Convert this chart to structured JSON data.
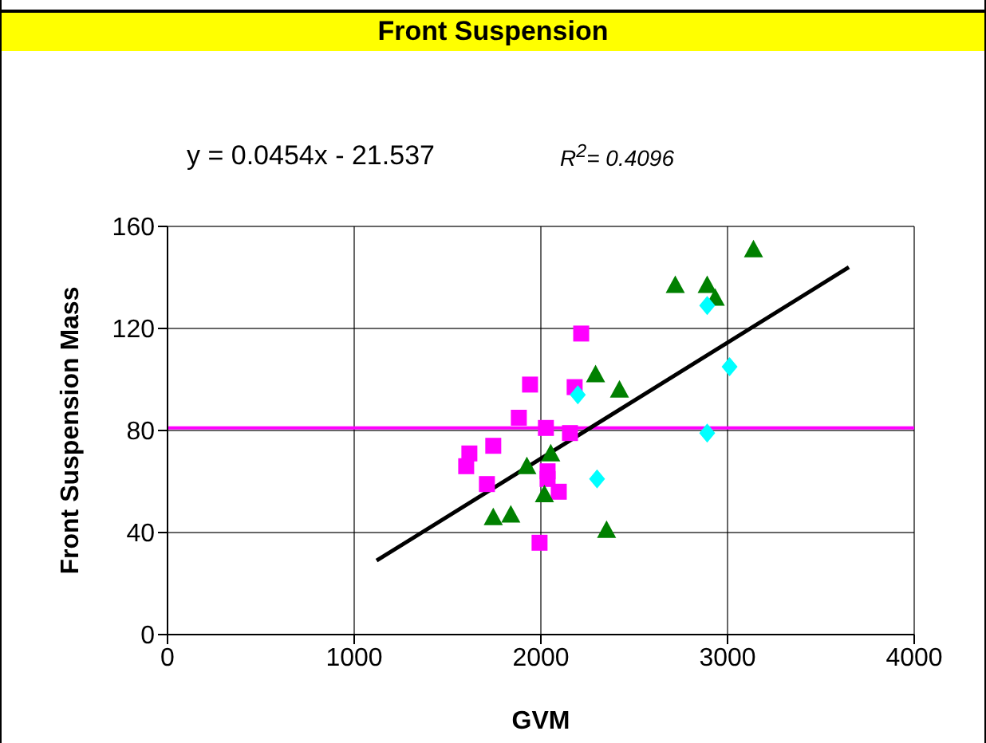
{
  "chart_data": {
    "type": "scatter",
    "title": "Front Suspension",
    "xlabel": "GVM",
    "ylabel": "Front Suspension Mass",
    "annotations": [
      "y = 0.0454x - 21.537",
      "R$^{2}$= 0.4096"
    ],
    "xlim": [
      0,
      4000
    ],
    "xticks": [
      0,
      1000,
      2000,
      3000,
      4000
    ],
    "ylim": [
      0,
      160
    ],
    "yticks": [
      0,
      40,
      80,
      120,
      160
    ],
    "grid": true,
    "ref_lines": [
      {
        "axis": "y",
        "value": 81,
        "color": "#ff00ff"
      }
    ],
    "series": [
      {
        "color": "#ff00ff",
        "marker": "square",
        "x": [
          1617,
          1600,
          1745,
          1711,
          2036,
          2036,
          2096,
          1993,
          2216,
          1942,
          2181,
          1882,
          2027,
          2156
        ],
        "values": [
          71,
          66,
          74,
          59,
          64,
          61,
          56,
          36,
          118,
          98,
          97,
          85,
          81,
          79
        ]
      },
      {
        "color": "#008000",
        "marker": "triangle",
        "x": [
          1745,
          1839,
          1925,
          2019,
          2352,
          2053,
          3139,
          2720,
          2891,
          2934,
          2293,
          2421
        ],
        "values": [
          46,
          47,
          66,
          55,
          41,
          71,
          151,
          137,
          137,
          132,
          102,
          96
        ]
      },
      {
        "color": "#00ffff",
        "marker": "diamond",
        "x": [
          2301,
          2891,
          3011,
          2198,
          2891
        ],
        "values": [
          61,
          129,
          105,
          94,
          79
        ]
      },
      {
        "type": "line",
        "color": "#000000",
        "marker": "none",
        "x": [
          1120,
          3650
        ],
        "values": [
          29,
          144
        ]
      }
    ]
  }
}
